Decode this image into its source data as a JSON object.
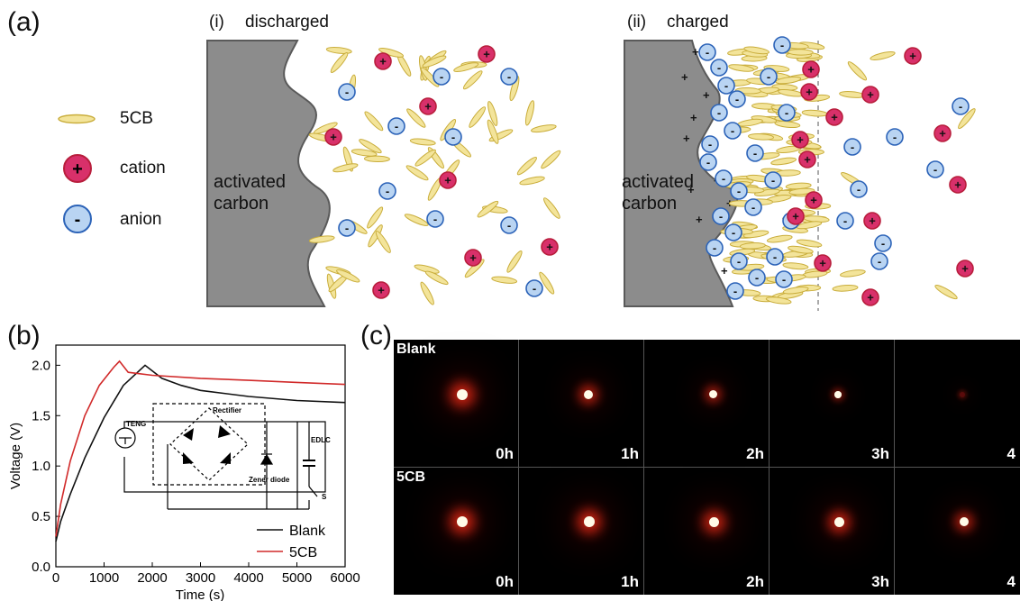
{
  "panel_a": {
    "letter": "(a)",
    "legend": {
      "lc_label": "5CB",
      "cation_label": "cation",
      "anion_label": "anion",
      "cation_sign": "+",
      "anion_sign": "-"
    },
    "sub_i": {
      "roman": "(i)",
      "state": "discharged",
      "electrode_line1": "activated",
      "electrode_line2": "carbon"
    },
    "sub_ii": {
      "roman": "(ii)",
      "state": "charged",
      "electrode_line1": "activated",
      "electrode_line2": "carbon"
    },
    "colors": {
      "electrode": "#8c8c8c",
      "lc": "#f3e49a",
      "lc_edge": "#c9ad3b",
      "cation": "#d8306a",
      "cation_edge": "#b81e3c",
      "anion": "#b9d4f2",
      "anion_edge": "#2c63b8"
    }
  },
  "panel_b": {
    "letter": "(b)",
    "chart_data": {
      "type": "line",
      "xlabel": "Time (s)",
      "ylabel": "Voltage (V)",
      "xlim": [
        0,
        6000
      ],
      "ylim": [
        0,
        2.2
      ],
      "xticks": [
        "0",
        "1000",
        "2000",
        "3000",
        "4000",
        "5000",
        "6000"
      ],
      "yticks": [
        "0.0",
        "0.5",
        "1.0",
        "1.5",
        "2.0"
      ],
      "series": [
        {
          "name": "Blank",
          "color": "#111111",
          "x": [
            0,
            100,
            300,
            600,
            1000,
            1400,
            1850,
            2200,
            2600,
            3000,
            4000,
            5000,
            6000
          ],
          "y": [
            0.25,
            0.45,
            0.72,
            1.08,
            1.48,
            1.8,
            2.0,
            1.87,
            1.8,
            1.75,
            1.69,
            1.65,
            1.63
          ]
        },
        {
          "name": "5CB",
          "color": "#d12a2a",
          "x": [
            0,
            100,
            300,
            600,
            900,
            1200,
            1320,
            1500,
            2000,
            3000,
            4000,
            5000,
            6000
          ],
          "y": [
            0.3,
            0.62,
            1.05,
            1.5,
            1.8,
            1.98,
            2.04,
            1.93,
            1.9,
            1.87,
            1.85,
            1.83,
            1.81
          ]
        }
      ],
      "legend_position": "bottom-right"
    },
    "inset": {
      "teng": "TENG",
      "rectifier": "Rectifier",
      "zener": "Zener diode",
      "edlc": "EDLC",
      "switch": "S"
    }
  },
  "panel_c": {
    "letter": "(c)",
    "rows": [
      {
        "label": "Blank",
        "times": [
          "0h",
          "1h",
          "2h",
          "3h",
          "4"
        ],
        "intensity": [
          1.0,
          0.7,
          0.55,
          0.25,
          0.05
        ]
      },
      {
        "label": "5CB",
        "times": [
          "0h",
          "1h",
          "2h",
          "3h",
          "4"
        ],
        "intensity": [
          1.0,
          0.95,
          0.9,
          0.85,
          0.65
        ]
      }
    ]
  }
}
